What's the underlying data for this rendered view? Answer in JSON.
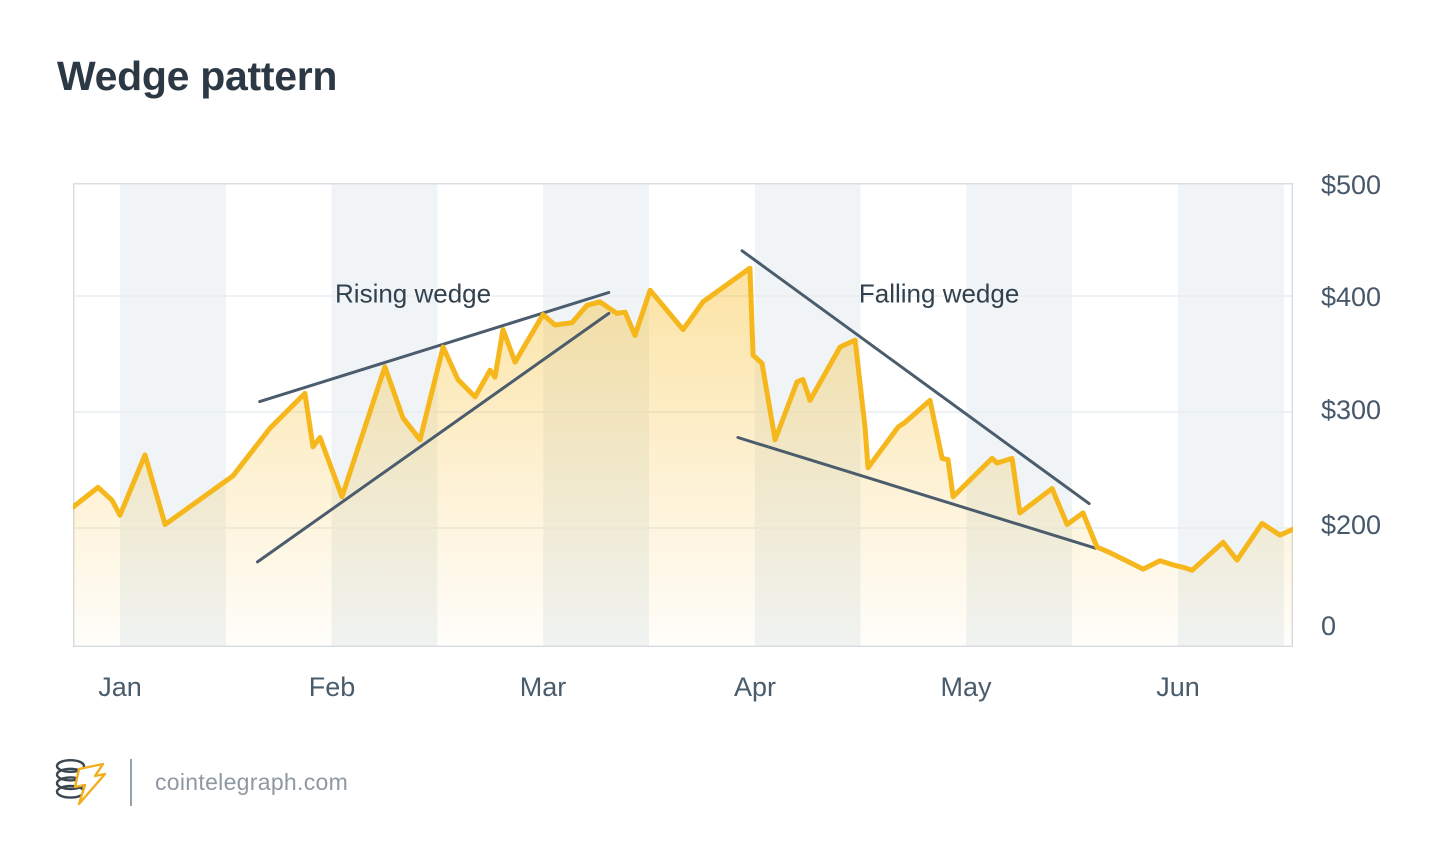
{
  "chart_data": {
    "type": "line",
    "title": "Wedge pattern",
    "x_ticklabels": [
      "Jan",
      "Feb",
      "Mar",
      "Apr",
      "May",
      "Jun"
    ],
    "y_ticklabels": [
      "$500",
      "$400",
      "$300",
      "$200",
      "0"
    ],
    "y_axis": {
      "min": 0,
      "max": 500,
      "gridline_values": [
        400,
        300,
        200
      ]
    },
    "series": [
      {
        "name": "price",
        "x_unit": "months from Jan tick",
        "points": [
          [
            -0.222,
            218
          ],
          [
            -0.104,
            235
          ],
          [
            -0.038,
            224
          ],
          [
            0.0,
            211
          ],
          [
            0.118,
            263
          ],
          [
            0.213,
            203
          ],
          [
            0.534,
            245
          ],
          [
            0.709,
            286
          ],
          [
            0.874,
            316
          ],
          [
            0.912,
            270
          ],
          [
            0.945,
            278
          ],
          [
            1.049,
            227
          ],
          [
            1.252,
            339
          ],
          [
            1.337,
            295
          ],
          [
            1.418,
            276
          ],
          [
            1.527,
            356
          ],
          [
            1.597,
            328
          ],
          [
            1.678,
            313
          ],
          [
            1.749,
            336
          ],
          [
            1.772,
            330
          ],
          [
            1.81,
            371
          ],
          [
            1.867,
            343
          ],
          [
            1.999,
            384
          ],
          [
            2.056,
            375
          ],
          [
            2.136,
            377
          ],
          [
            2.207,
            392
          ],
          [
            2.268,
            395
          ],
          [
            2.349,
            385
          ],
          [
            2.387,
            386
          ],
          [
            2.434,
            366
          ],
          [
            2.505,
            405
          ],
          [
            2.661,
            371
          ],
          [
            2.755,
            395
          ],
          [
            2.977,
            424
          ],
          [
            2.992,
            349
          ],
          [
            3.034,
            342
          ],
          [
            3.096,
            276
          ],
          [
            3.2,
            326
          ],
          [
            3.228,
            328
          ],
          [
            3.261,
            310
          ],
          [
            3.403,
            356
          ],
          [
            3.474,
            362
          ],
          [
            3.521,
            287
          ],
          [
            3.535,
            252
          ],
          [
            3.677,
            287
          ],
          [
            3.71,
            291
          ],
          [
            3.828,
            310
          ],
          [
            3.885,
            260
          ],
          [
            3.913,
            259
          ],
          [
            3.937,
            227
          ],
          [
            4.121,
            260
          ],
          [
            4.145,
            256
          ],
          [
            4.216,
            260
          ],
          [
            4.253,
            213
          ],
          [
            4.405,
            234
          ],
          [
            4.476,
            203
          ],
          [
            4.551,
            213
          ],
          [
            4.617,
            168
          ],
          [
            4.669,
            160
          ],
          [
            4.75,
            146
          ],
          [
            4.835,
            131
          ],
          [
            4.915,
            145
          ],
          [
            4.977,
            138
          ],
          [
            5.024,
            134
          ],
          [
            5.067,
            129
          ],
          [
            5.213,
            176
          ],
          [
            5.279,
            146
          ],
          [
            5.397,
            204
          ],
          [
            5.482,
            188
          ],
          [
            5.544,
            198
          ]
        ]
      }
    ],
    "annotations": {
      "rising_label": {
        "text": "Rising wedge",
        "x": 1.385,
        "y": 402
      },
      "falling_label": {
        "text": "Falling wedge",
        "x": 3.871,
        "y": 402
      },
      "trendlines": [
        {
          "name": "rising-wedge-upper-trendline",
          "from": [
            0.66,
            309
          ],
          "to": [
            2.31,
            403
          ]
        },
        {
          "name": "rising-wedge-lower-trendline",
          "from": [
            0.65,
            143
          ],
          "to": [
            2.31,
            385
          ]
        },
        {
          "name": "falling-wedge-upper-trendline",
          "from": [
            2.94,
            439
          ],
          "to": [
            4.58,
            221
          ]
        },
        {
          "name": "falling-wedge-lower-trendline",
          "from": [
            2.92,
            278
          ],
          "to": [
            4.61,
            166
          ]
        }
      ]
    },
    "colors": {
      "line": "#F5B71B",
      "trendline": "#4B5C6D",
      "stripe": "#F0F4F6",
      "gridline": "#E7EEF1",
      "plot_border": "#D7DFE4",
      "area_top": "rgba(246,184,26,0.40)",
      "area_bottom": "rgba(246,184,26,0.02)"
    }
  },
  "footer": {
    "site": "cointelegraph.com",
    "logo_icon": "cointelegraph-coins-lightning-logo"
  }
}
